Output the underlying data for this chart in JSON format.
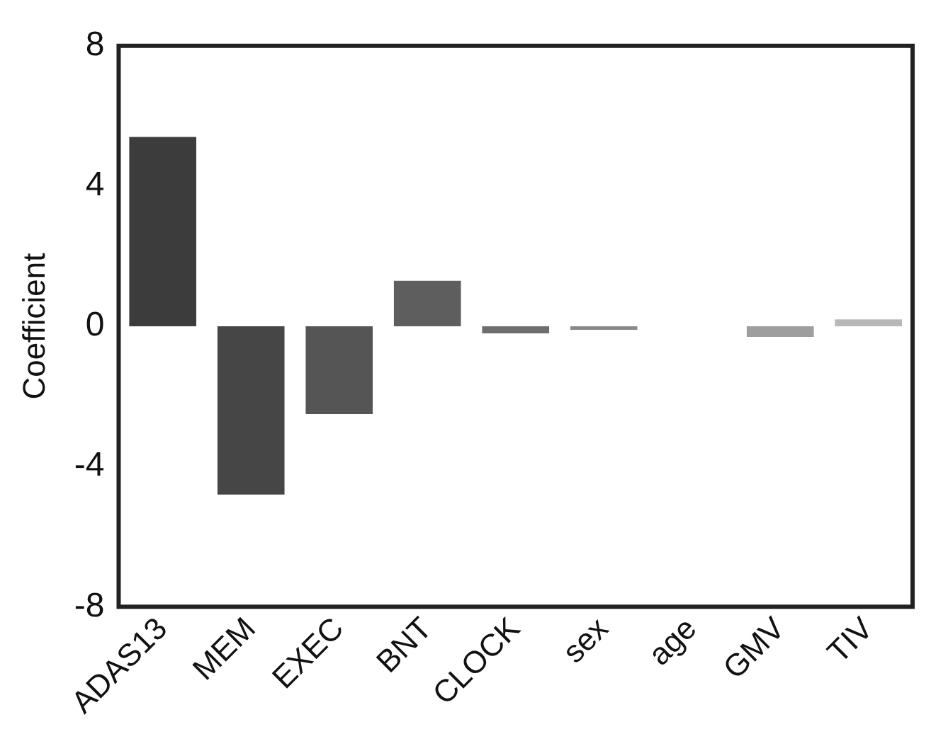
{
  "chart_data": {
    "type": "bar",
    "ylabel": "Coefficient",
    "categories": [
      "ADAS13",
      "MEM",
      "EXEC",
      "BNT",
      "CLOCK",
      "sex",
      "age",
      "GMV",
      "TIV"
    ],
    "values": [
      5.4,
      -4.8,
      -2.5,
      1.3,
      -0.2,
      -0.1,
      null,
      -0.3,
      0.2
    ],
    "colors": [
      "#3c3c3c",
      "#464646",
      "#555555",
      "#5e5e5e",
      "#6e6e6e",
      "#8a8a8a",
      "#f4f4f4",
      "#9e9e9e",
      "#b8b8b8"
    ],
    "ylim": [
      -8,
      8
    ],
    "yticks": [
      -8,
      -4,
      0,
      4,
      8
    ],
    "grid": false,
    "legend": false
  }
}
